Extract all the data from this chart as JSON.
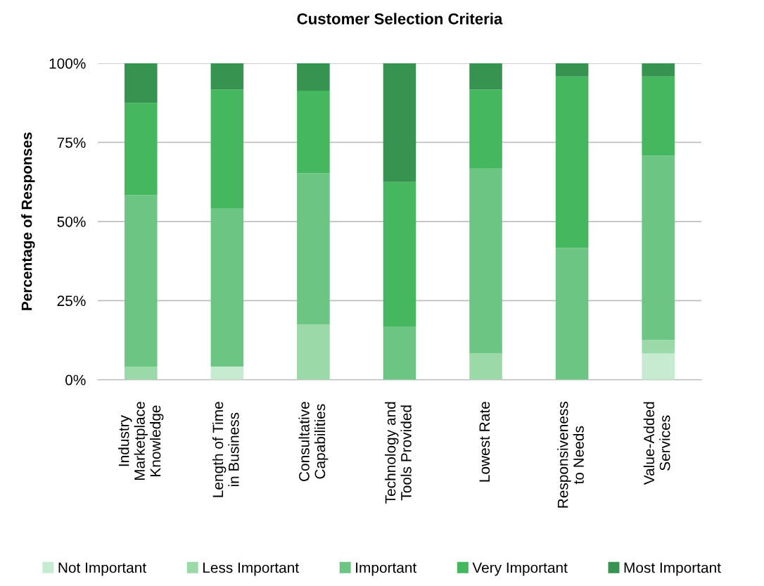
{
  "chart_data": {
    "type": "bar",
    "stacked": true,
    "title": "Customer Selection Criteria",
    "ylabel": "Percentage of Responses",
    "categories": [
      "Industry\nMarketplace\nKnowledge",
      "Length of Time\nin Business",
      "Consultative\nCapabilities",
      "Technology and\nTools Provided",
      "Lowest Rate",
      "Responsiveness\nto Needs",
      "Value-Added\nServices"
    ],
    "series": [
      {
        "name": "Not Important",
        "color": "#c6ebd1",
        "values": [
          0,
          4.2,
          0,
          0,
          0,
          0,
          8.3
        ]
      },
      {
        "name": "Less Important",
        "color": "#9bd9a9",
        "values": [
          4.2,
          0,
          17.4,
          0,
          8.3,
          0,
          4.2
        ]
      },
      {
        "name": "Important",
        "color": "#6cc582",
        "values": [
          54.1,
          50,
          47.8,
          16.7,
          58.4,
          41.7,
          58.3
        ]
      },
      {
        "name": "Very Important",
        "color": "#44b75f",
        "values": [
          29.2,
          37.5,
          26.1,
          45.8,
          25,
          54.1,
          25
        ]
      },
      {
        "name": "Most Important",
        "color": "#379350",
        "values": [
          12.5,
          8.3,
          8.7,
          37.5,
          8.3,
          4.2,
          4.2
        ]
      }
    ],
    "ylim": [
      0,
      100
    ],
    "yticks": [
      {
        "value": 0,
        "label": "0%"
      },
      {
        "value": 25,
        "label": "25%"
      },
      {
        "value": 50,
        "label": "50%"
      },
      {
        "value": 75,
        "label": "75%"
      },
      {
        "value": 100,
        "label": "100%"
      }
    ],
    "grid": "y",
    "legend": "bottom"
  }
}
